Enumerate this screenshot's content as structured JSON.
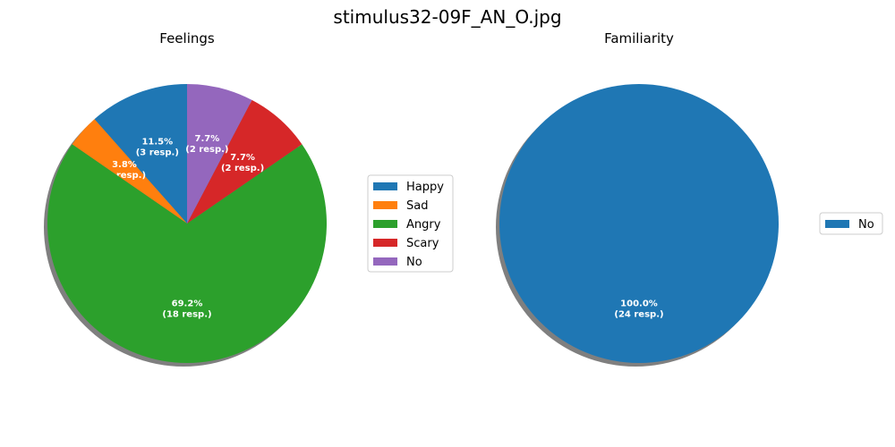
{
  "figure": {
    "title": "stimulus32-09F_AN_O.jpg"
  },
  "chart_data": [
    {
      "type": "pie",
      "title": "Feelings",
      "start_angle_deg": 90,
      "direction": "counterclockwise",
      "shadow": true,
      "legend_placement": "right",
      "slices": [
        {
          "label": "Happy",
          "value": 3,
          "pct_label": "11.5%",
          "count_label": "(3 resp.)",
          "color": "#1f77b4"
        },
        {
          "label": "Sad",
          "value": 1,
          "pct_label": "3.8%",
          "count_label": "(1 resp.)",
          "color": "#ff7f0e"
        },
        {
          "label": "Angry",
          "value": 18,
          "pct_label": "69.2%",
          "count_label": "(18 resp.)",
          "color": "#2ca02c"
        },
        {
          "label": "Scary",
          "value": 2,
          "pct_label": "7.7%",
          "count_label": "(2 resp.)",
          "color": "#d62728"
        },
        {
          "label": "No",
          "value": 2,
          "pct_label": "7.7%",
          "count_label": "(2 resp.)",
          "color": "#9467bd"
        }
      ]
    },
    {
      "type": "pie",
      "title": "Familiarity",
      "start_angle_deg": 90,
      "direction": "counterclockwise",
      "shadow": true,
      "legend_placement": "right",
      "slices": [
        {
          "label": "No",
          "value": 24,
          "pct_label": "100.0%",
          "count_label": "(24 resp.)",
          "color": "#1f77b4"
        }
      ]
    }
  ]
}
